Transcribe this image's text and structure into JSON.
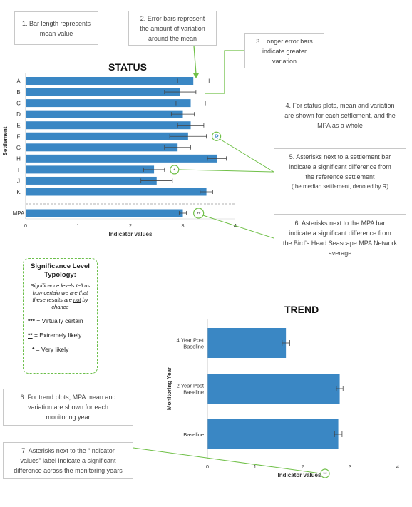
{
  "colors": {
    "bar": "#3a87c4",
    "callout_line": "#70c048",
    "box_border": "#c8c8c8",
    "error_bar": "#444444"
  },
  "callouts": {
    "c1": [
      "1. Bar length represents",
      "mean value"
    ],
    "c2": [
      "2. Error bars represent",
      "the amount of variation",
      "around the mean"
    ],
    "c3": [
      "3. Longer error bars",
      "indicate greater",
      "variation"
    ],
    "c4": [
      "4. For status plots, mean and variation",
      "are shown for each settlement, and the",
      "MPA as a whole"
    ],
    "c5": [
      "5. Asterisks next to a settlement bar",
      "indicate a significant difference from",
      "the reference settlement"
    ],
    "c5_sub": "(the median settlement, denoted by R)",
    "c6a": [
      "6. Asterisks next to the MPA bar",
      "indicate a significant difference from",
      "the Bird’s Head Seascape MPA Network",
      "average"
    ],
    "c6b": [
      "6. For trend plots, MPA mean and",
      "variation are shown for each",
      "monitoring year"
    ],
    "c7": [
      "7. Asterisks next to the “Indicator",
      "values” label indicate a significant",
      "difference across the monitoring years"
    ]
  },
  "significance": {
    "heading_line1": "Significance Level",
    "heading_line2": "Typology:",
    "description_pre": "Significance levels tell us how certain we are that these results are ",
    "description_not": "not",
    "description_post": " by chance",
    "levels": [
      {
        "stars": "***",
        "label": " = Virtually certain"
      },
      {
        "stars": "**",
        "label": " = Extremely likely"
      },
      {
        "stars": "*",
        "label": "  = Very likely"
      }
    ]
  },
  "chart_data": [
    {
      "type": "bar",
      "orientation": "horizontal",
      "title": "STATUS",
      "xlabel": "Indicator values",
      "ylabel": "Settlement",
      "xlim": [
        0,
        4
      ],
      "xticks": [
        "0",
        "1",
        "2",
        "3",
        "4"
      ],
      "categories": [
        "A",
        "B",
        "C",
        "D",
        "E",
        "F",
        "G",
        "H",
        "I",
        "J",
        "K",
        "MPA"
      ],
      "values": [
        3.2,
        2.95,
        3.15,
        3.0,
        3.15,
        3.1,
        2.9,
        3.65,
        2.45,
        2.5,
        3.45,
        3.0
      ],
      "error": [
        0.3,
        0.3,
        0.28,
        0.22,
        0.25,
        0.35,
        0.25,
        0.18,
        0.2,
        0.3,
        0.12,
        0.07
      ],
      "markers": {
        "F": "R",
        "I": "*",
        "MPA": "**"
      },
      "grid": false
    },
    {
      "type": "bar",
      "orientation": "horizontal",
      "title": "TREND",
      "xlabel": "Indicator values",
      "xlabel_marker": "**",
      "ylabel": "Monitoring Year",
      "xlim": [
        0,
        4
      ],
      "xticks": [
        "0",
        "1",
        "2",
        "3",
        "4"
      ],
      "categories": [
        "4 Year Post|Baseline",
        "2 Year Post|Baseline",
        "Baseline"
      ],
      "values": [
        1.65,
        2.78,
        2.75
      ],
      "error": [
        0.08,
        0.07,
        0.08
      ],
      "grid": false
    }
  ]
}
